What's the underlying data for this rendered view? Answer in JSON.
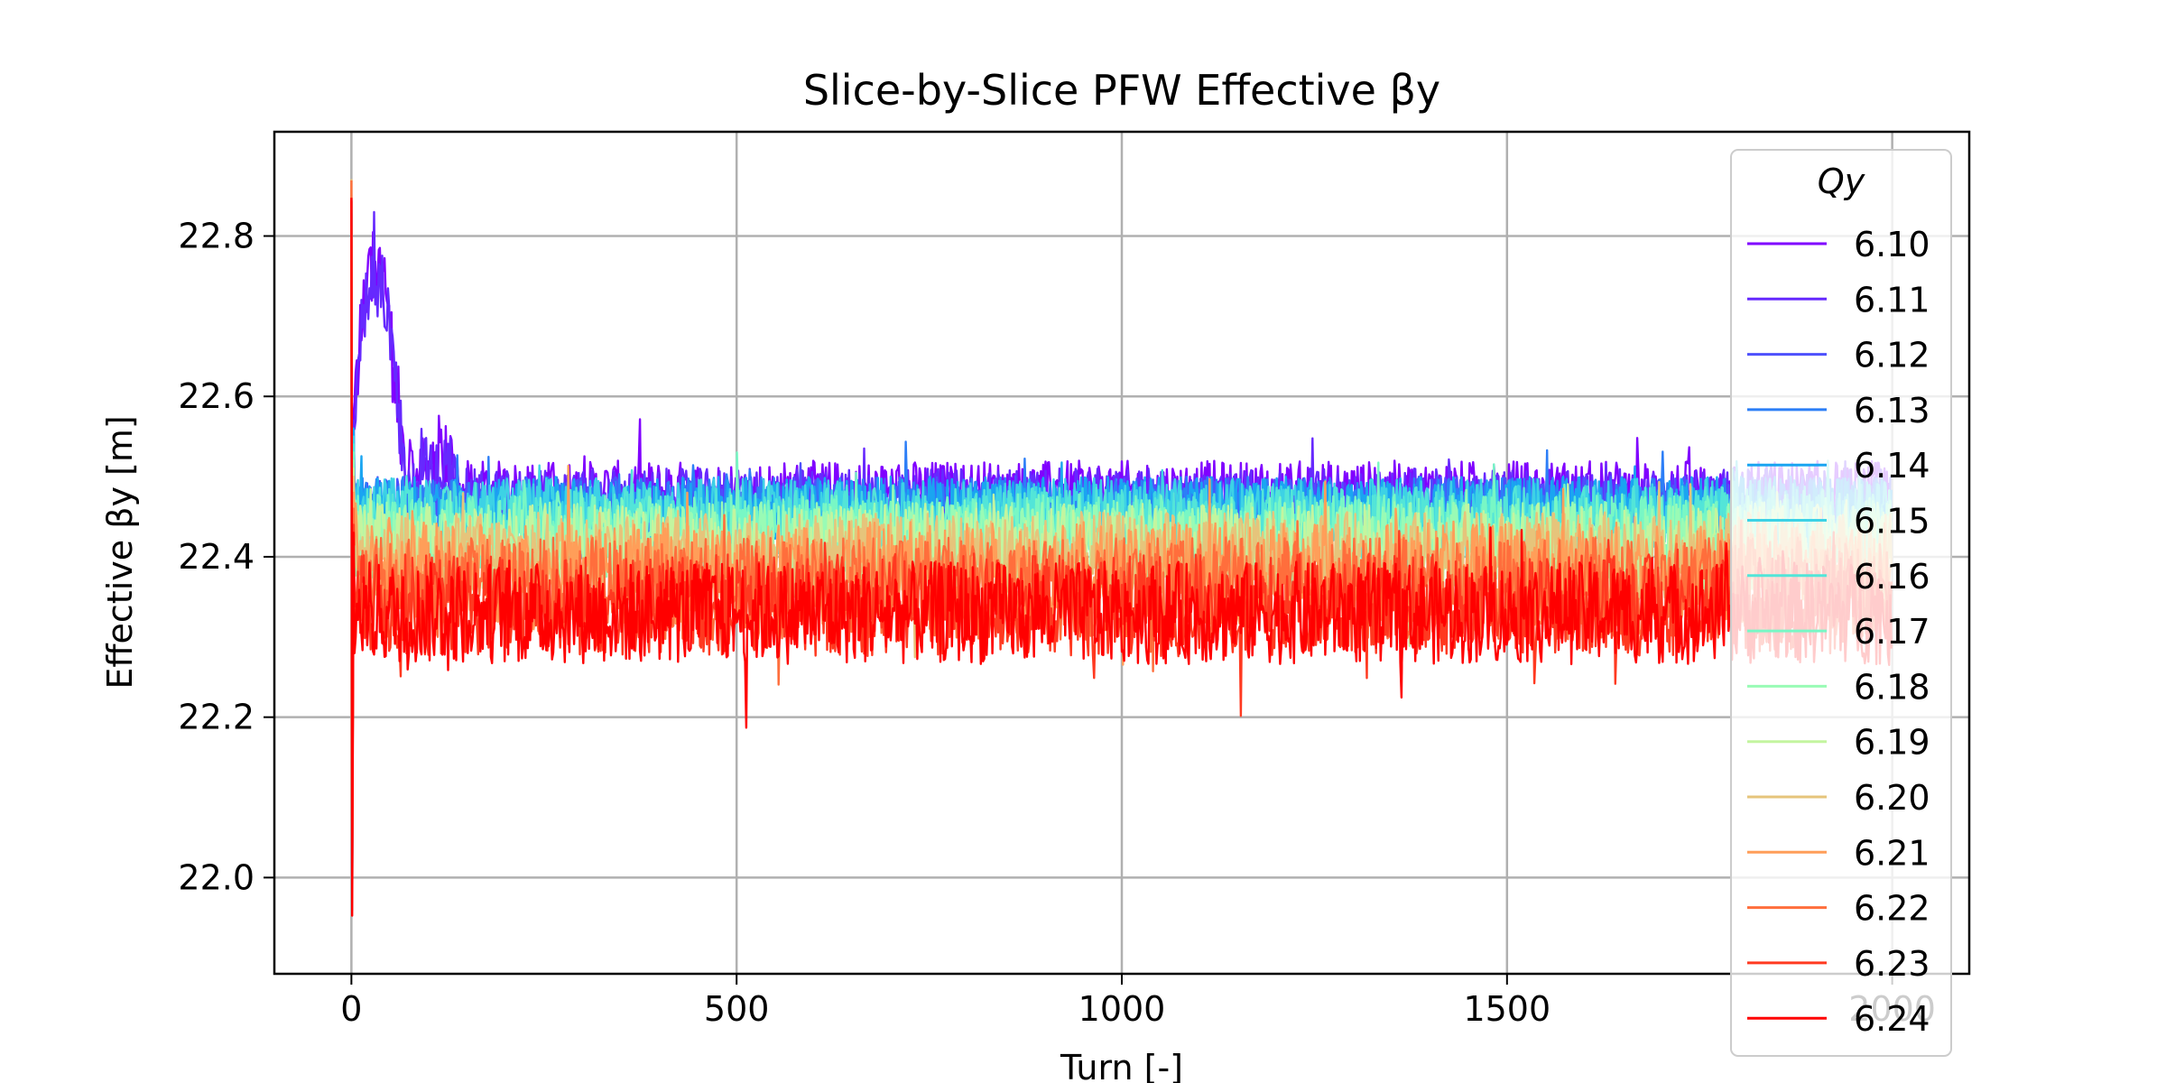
{
  "chart_data": {
    "type": "line",
    "title": "Slice-by-Slice PFW Effective βy",
    "xlabel": "Turn [-]",
    "ylabel": "Effective βy [m]",
    "xlim": [
      -100,
      2100
    ],
    "ylim": [
      21.88,
      22.93
    ],
    "xticks": [
      0,
      500,
      1000,
      1500,
      2000
    ],
    "xtick_labels": [
      "0",
      "500",
      "1000",
      "1500",
      "2000"
    ],
    "yticks": [
      22.0,
      22.2,
      22.4,
      22.6,
      22.8
    ],
    "ytick_labels": [
      "22.0",
      "22.2",
      "22.4",
      "22.6",
      "22.8"
    ],
    "grid": true,
    "legend": {
      "title": "Qy",
      "placement": "right, overlapping plot edge"
    },
    "turn_range": [
      0,
      2000
    ],
    "series": [
      {
        "name": "6.10",
        "color": "#8000ff",
        "mean": 22.48,
        "noise": 0.025
      },
      {
        "name": "6.11",
        "color": "#6629fe",
        "mean": 22.47,
        "noise": 0.025
      },
      {
        "name": "6.12",
        "color": "#4d50fc",
        "mean": 22.46,
        "noise": 0.025
      },
      {
        "name": "6.13",
        "color": "#2c7ef7",
        "mean": 22.46,
        "noise": 0.025
      },
      {
        "name": "6.14",
        "color": "#1aa5f1",
        "mean": 22.46,
        "noise": 0.025
      },
      {
        "name": "6.15",
        "color": "#3dd2e5",
        "mean": 22.45,
        "noise": 0.03
      },
      {
        "name": "6.16",
        "color": "#53e5d8",
        "mean": 22.44,
        "noise": 0.03
      },
      {
        "name": "6.17",
        "color": "#78f7c5",
        "mean": 22.43,
        "noise": 0.03
      },
      {
        "name": "6.18",
        "color": "#99fbb5",
        "mean": 22.42,
        "noise": 0.03
      },
      {
        "name": "6.19",
        "color": "#c3f59f",
        "mean": 22.41,
        "noise": 0.035
      },
      {
        "name": "6.20",
        "color": "#e6c47b",
        "mean": 22.4,
        "noise": 0.035
      },
      {
        "name": "6.21",
        "color": "#ff9e59",
        "mean": 22.38,
        "noise": 0.04
      },
      {
        "name": "6.22",
        "color": "#ff6e3c",
        "mean": 22.36,
        "noise": 0.04
      },
      {
        "name": "6.23",
        "color": "#ff3920",
        "mean": 22.34,
        "noise": 0.04
      },
      {
        "name": "6.24",
        "color": "#ff0000",
        "mean": 22.33,
        "noise": 0.04
      }
    ]
  }
}
